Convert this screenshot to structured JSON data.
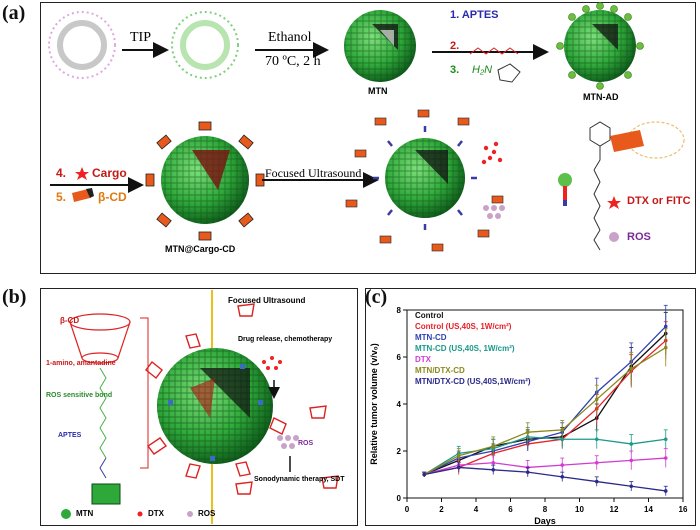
{
  "panel_a": {
    "tag": "(a)",
    "tip_label": "TIP",
    "ethanol_label": "Ethanol",
    "condition_label": "70 ºC, 2 h",
    "mtn_label": "MTN",
    "mtn_ad_label": "MTN-AD",
    "reagent_1": "1. APTES",
    "reagent_2": "2.",
    "reagent_3": "3.",
    "reagent_3_formula": "H₂N",
    "step_4": "4.",
    "step_4_label": "Cargo",
    "step_5": "5.",
    "step_5_label": "β-CD",
    "mtn_cargo_label": "MTN@Cargo-CD",
    "fus_label": "Focused Ultrasound",
    "legend_dtx": "DTX or FITC",
    "legend_ros": "ROS"
  },
  "panel_b": {
    "tag": "(b)",
    "fus_label": "Focused Ultrasound",
    "bcd_label": "β-CD",
    "amine_label": "1-amino, amantadine",
    "ros_bond_label": "ROS sensitive bond",
    "aptes_label": "APTES",
    "drug_release_label": "Drug release, chemotherapy",
    "ros_label": "ROS",
    "sdt_label": "Sonodynamic therapy, SDT",
    "legend_mtn": "MTN",
    "legend_dtx": "DTX",
    "legend_ros": "ROS"
  },
  "panel_c": {
    "tag": "(c)"
  },
  "chart_data": {
    "type": "line",
    "xlabel": "Days",
    "ylabel": "Relative tumor volume (v/v₀)",
    "xlim": [
      0,
      16
    ],
    "ylim": [
      0,
      8
    ],
    "xticks": [
      0,
      2,
      4,
      6,
      8,
      10,
      12,
      14,
      16
    ],
    "yticks": [
      0,
      2,
      4,
      6,
      8
    ],
    "x": [
      1,
      3,
      5,
      7,
      9,
      11,
      13,
      15
    ],
    "series": [
      {
        "name": "Control",
        "color": "#111111",
        "values": [
          1.0,
          1.6,
          2.2,
          2.5,
          2.6,
          3.4,
          5.6,
          7.0
        ],
        "err": [
          0.1,
          0.3,
          0.3,
          0.4,
          0.4,
          0.6,
          0.8,
          0.9
        ]
      },
      {
        "name": "Control (US,40S, 1W/cm²)",
        "color": "#e8202a",
        "values": [
          1.0,
          1.3,
          1.9,
          2.3,
          2.5,
          3.8,
          5.4,
          6.7
        ],
        "err": [
          0.1,
          0.3,
          0.3,
          0.3,
          0.4,
          0.6,
          0.7,
          0.8
        ]
      },
      {
        "name": "MTN-CD",
        "color": "#2f3fb0",
        "values": [
          1.0,
          1.7,
          2.0,
          2.4,
          2.8,
          4.5,
          5.8,
          7.3
        ],
        "err": [
          0.1,
          0.3,
          0.3,
          0.4,
          0.4,
          0.6,
          0.8,
          0.9
        ]
      },
      {
        "name": "MTN-CD (US,40S, 1W/cm²)",
        "color": "#1a9a8a",
        "values": [
          1.0,
          1.9,
          2.1,
          2.6,
          2.5,
          2.5,
          2.3,
          2.5
        ],
        "err": [
          0.1,
          0.3,
          0.4,
          0.4,
          0.4,
          0.4,
          0.4,
          0.4
        ]
      },
      {
        "name": "DTX",
        "color": "#d23ad2",
        "values": [
          1.0,
          1.4,
          1.5,
          1.3,
          1.4,
          1.5,
          1.6,
          1.7
        ],
        "err": [
          0.1,
          0.3,
          0.3,
          0.3,
          0.3,
          0.3,
          0.4,
          0.4
        ]
      },
      {
        "name": "MTN/DTX-CD",
        "color": "#8a8a1c",
        "values": [
          1.0,
          1.8,
          2.2,
          2.8,
          2.9,
          4.2,
          5.5,
          6.4
        ],
        "err": [
          0.1,
          0.3,
          0.4,
          0.4,
          0.4,
          0.6,
          0.7,
          0.8
        ]
      },
      {
        "name": "MTN/DTX-CD (US,40S,1W/cm²)",
        "color": "#2a2a8a",
        "values": [
          1.0,
          1.3,
          1.2,
          1.1,
          0.9,
          0.7,
          0.5,
          0.3
        ],
        "err": [
          0.1,
          0.2,
          0.2,
          0.2,
          0.2,
          0.2,
          0.2,
          0.2
        ]
      }
    ]
  }
}
